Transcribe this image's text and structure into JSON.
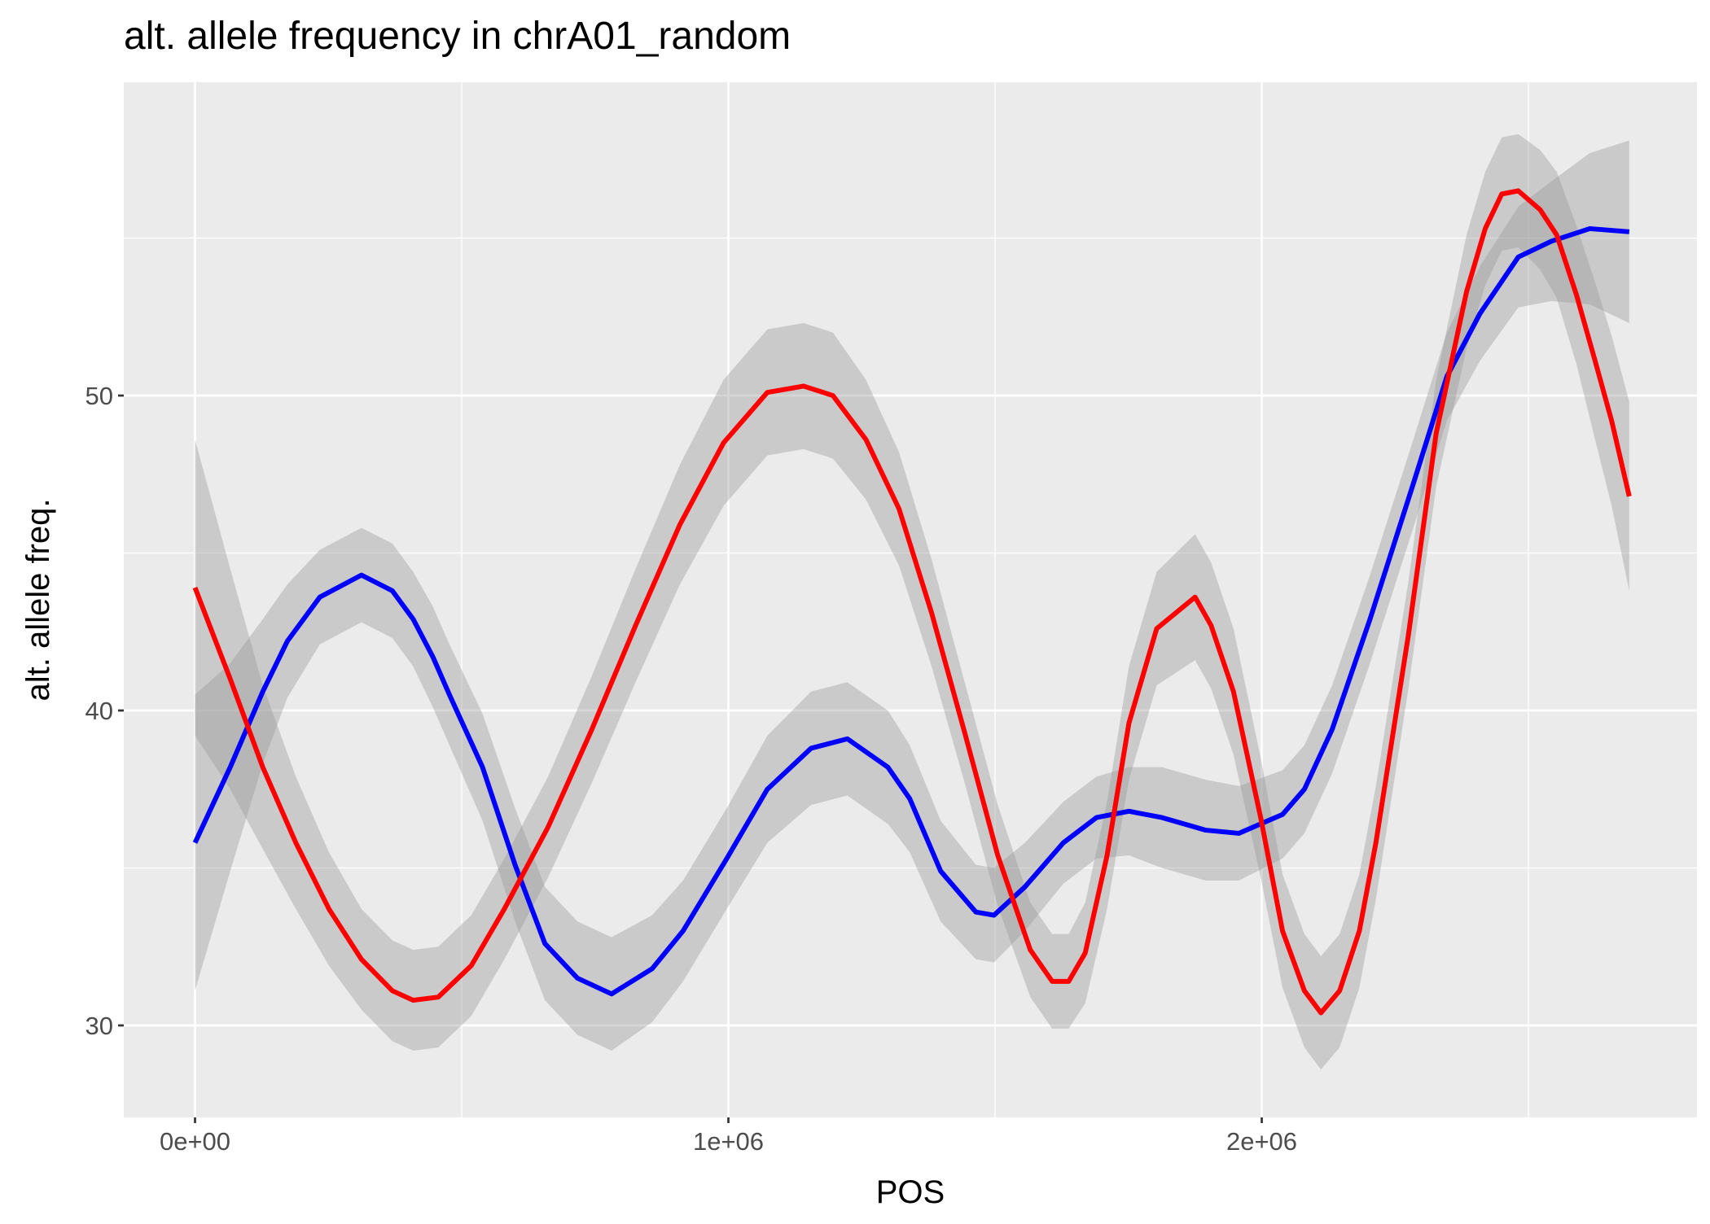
{
  "chart_data": {
    "type": "smooth",
    "title": "alt. allele frequency in chrA01_random",
    "x_label": "POS",
    "y_label": "alt. allele freq.",
    "xlim": [
      -133600,
      2816000
    ],
    "ylim": [
      27.08,
      59.95
    ],
    "xticks": [
      {
        "value": 0,
        "label": "0e+00"
      },
      {
        "value": 1000000,
        "label": "1e+06"
      },
      {
        "value": 2000000,
        "label": "2e+06"
      }
    ],
    "yticks": [
      30,
      40,
      50
    ],
    "x_minor_grid": [
      500000,
      1500000,
      2500000
    ],
    "y_minor_grid": [
      35,
      45,
      55
    ],
    "grid": true,
    "band_color": "#999999",
    "series": [
      {
        "color": "#0000ff",
        "x": [
          0,
          66000,
          127000,
          173000,
          234000,
          312000,
          370000,
          409000,
          446000,
          477000,
          539000,
          600000,
          656000,
          717000,
          781000,
          857000,
          915000,
          997000,
          1073000,
          1155000,
          1223000,
          1299000,
          1340000,
          1398000,
          1464000,
          1498000,
          1556000,
          1628000,
          1690000,
          1751000,
          1813000,
          1895000,
          1957000,
          2039000,
          2080000,
          2132000,
          2203000,
          2286000,
          2347000,
          2409000,
          2481000,
          2543000,
          2615000,
          2689000
        ],
        "values": [
          35.8,
          38.2,
          40.6,
          42.2,
          43.6,
          44.3,
          43.8,
          42.9,
          41.7,
          40.5,
          38.2,
          35.1,
          32.6,
          31.5,
          31.0,
          31.8,
          33.0,
          35.3,
          37.5,
          38.8,
          39.1,
          38.2,
          37.2,
          34.9,
          33.6,
          33.5,
          34.4,
          35.8,
          36.6,
          36.8,
          36.6,
          36.2,
          36.1,
          36.7,
          37.5,
          39.4,
          42.9,
          47.3,
          50.6,
          52.6,
          54.4,
          54.9,
          55.3,
          55.2
        ],
        "lower": [
          31.1,
          34.9,
          38.3,
          40.4,
          42.1,
          42.8,
          42.3,
          41.4,
          40.1,
          38.9,
          36.5,
          33.3,
          30.8,
          29.7,
          29.2,
          30.1,
          31.4,
          33.7,
          35.8,
          37.0,
          37.3,
          36.4,
          35.5,
          33.3,
          32.1,
          32.0,
          33.0,
          34.5,
          35.3,
          35.4,
          35.0,
          34.6,
          34.6,
          35.3,
          36.1,
          38.0,
          41.5,
          45.9,
          49.2,
          51.1,
          52.8,
          53.0,
          52.9,
          52.3
        ],
        "upper": [
          40.5,
          41.5,
          42.9,
          44.0,
          45.1,
          45.8,
          45.3,
          44.4,
          43.3,
          42.1,
          39.9,
          36.9,
          34.4,
          33.3,
          32.8,
          33.5,
          34.6,
          36.9,
          39.2,
          40.6,
          40.9,
          40.0,
          38.9,
          36.5,
          35.1,
          35.0,
          35.8,
          37.1,
          37.9,
          38.2,
          38.2,
          37.8,
          37.6,
          38.1,
          38.9,
          40.8,
          44.3,
          48.7,
          52.0,
          54.1,
          56.0,
          56.8,
          57.7,
          58.1
        ]
      },
      {
        "color": "#ff0000",
        "x": [
          0,
          66000,
          127000,
          189000,
          251000,
          312000,
          370000,
          409000,
          456000,
          518000,
          580000,
          662000,
          744000,
          826000,
          909000,
          991000,
          1073000,
          1141000,
          1196000,
          1258000,
          1320000,
          1381000,
          1443000,
          1505000,
          1566000,
          1607000,
          1638000,
          1669000,
          1710000,
          1751000,
          1803000,
          1875000,
          1905000,
          1947000,
          1998000,
          2039000,
          2080000,
          2111000,
          2146000,
          2183000,
          2214000,
          2275000,
          2327000,
          2384000,
          2419000,
          2450000,
          2481000,
          2522000,
          2553000,
          2590000,
          2625000,
          2656000,
          2689000
        ],
        "values": [
          43.9,
          41.0,
          38.2,
          35.8,
          33.7,
          32.1,
          31.1,
          30.8,
          30.9,
          31.9,
          33.7,
          36.3,
          39.4,
          42.7,
          45.9,
          48.5,
          50.1,
          50.3,
          50.0,
          48.6,
          46.4,
          43.1,
          39.3,
          35.4,
          32.4,
          31.4,
          31.4,
          32.3,
          35.4,
          39.6,
          42.6,
          43.6,
          42.7,
          40.6,
          36.6,
          33.0,
          31.1,
          30.4,
          31.1,
          33.0,
          35.8,
          42.4,
          48.8,
          53.3,
          55.3,
          56.4,
          56.5,
          55.9,
          55.1,
          53.2,
          51.1,
          49.2,
          46.8
        ],
        "lower": [
          39.2,
          37.5,
          35.6,
          33.7,
          31.9,
          30.5,
          29.5,
          29.2,
          29.3,
          30.3,
          32.1,
          34.7,
          37.7,
          40.9,
          44.0,
          46.5,
          48.1,
          48.3,
          48.0,
          46.7,
          44.6,
          41.4,
          37.7,
          33.8,
          30.9,
          29.9,
          29.9,
          30.7,
          33.7,
          37.8,
          40.8,
          41.6,
          40.7,
          38.6,
          34.7,
          31.2,
          29.3,
          28.6,
          29.3,
          31.2,
          34.0,
          40.7,
          47.1,
          51.5,
          53.5,
          54.6,
          54.7,
          54.0,
          53.1,
          51.0,
          48.6,
          46.5,
          43.8
        ],
        "upper": [
          48.6,
          44.5,
          40.8,
          37.9,
          35.5,
          33.7,
          32.7,
          32.4,
          32.5,
          33.5,
          35.3,
          37.9,
          41.1,
          44.5,
          47.8,
          50.5,
          52.1,
          52.3,
          52.0,
          50.5,
          48.2,
          44.8,
          40.9,
          37.0,
          33.9,
          32.9,
          32.9,
          33.9,
          37.1,
          41.4,
          44.4,
          45.6,
          44.7,
          42.6,
          38.5,
          34.8,
          32.9,
          32.2,
          32.9,
          34.8,
          37.6,
          44.1,
          50.5,
          55.1,
          57.1,
          58.2,
          58.3,
          57.8,
          57.1,
          55.4,
          53.6,
          51.9,
          49.8
        ]
      }
    ]
  }
}
